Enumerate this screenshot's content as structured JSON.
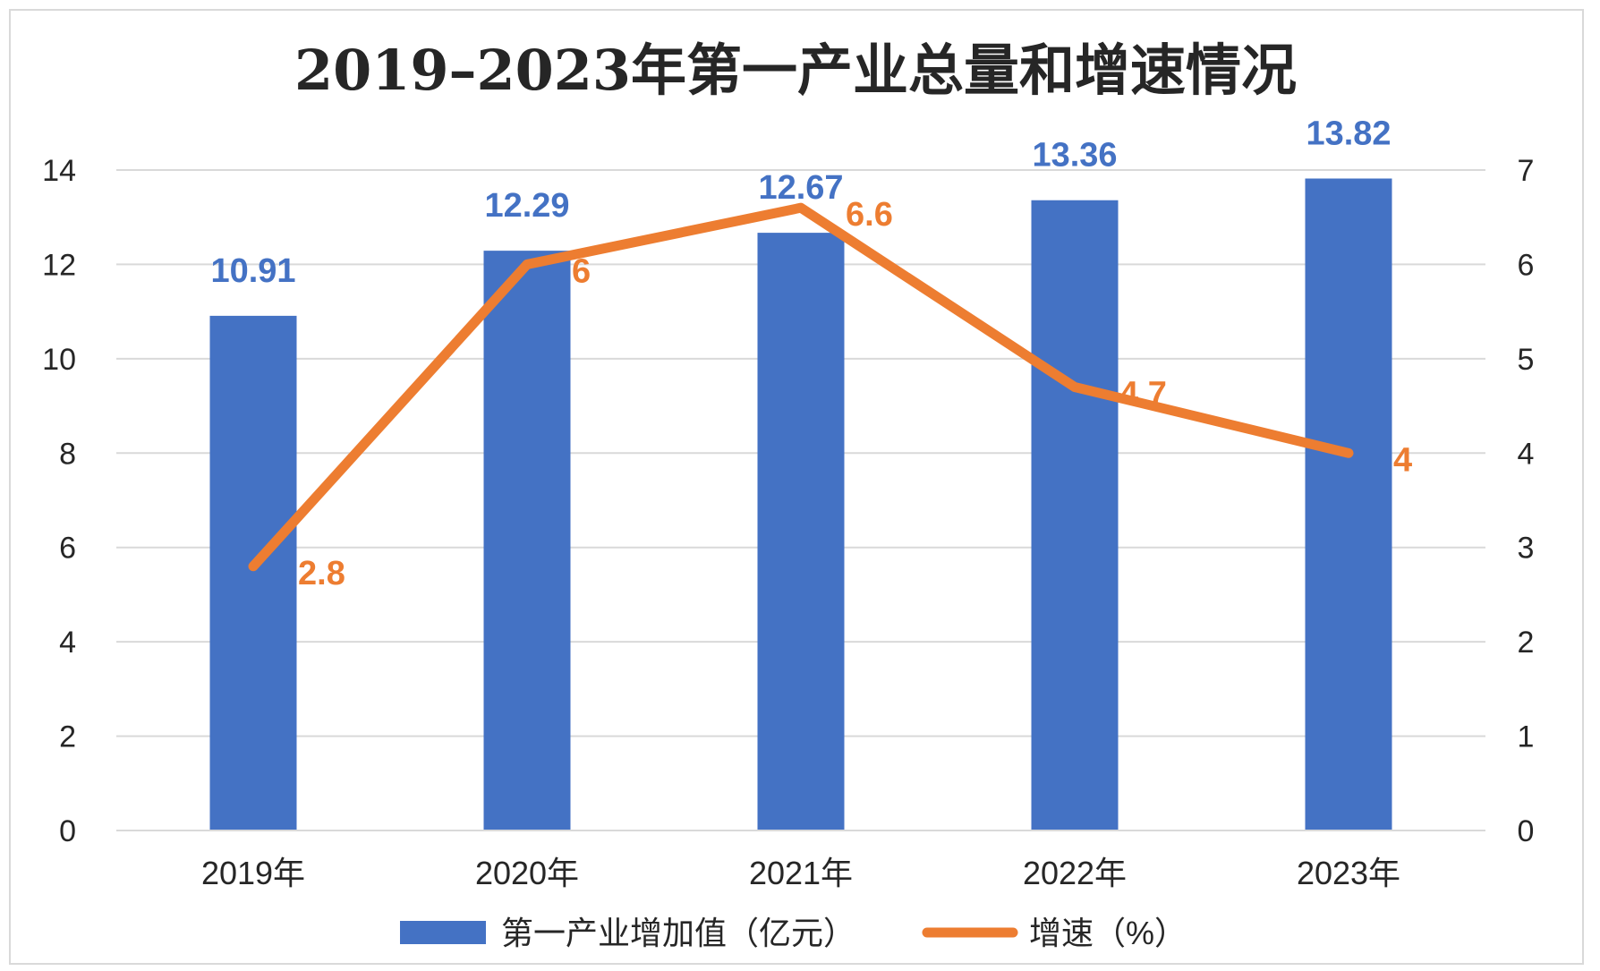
{
  "chart_data": {
    "type": "bar",
    "title": "2019–2023年第一产业总量和增速情况",
    "categories": [
      "2019年",
      "2020年",
      "2021年",
      "2022年",
      "2023年"
    ],
    "series": [
      {
        "name": "第一产业增加值（亿元）",
        "type": "bar",
        "axis": "left",
        "color": "#4472c4",
        "values": [
          10.91,
          12.29,
          12.67,
          13.36,
          13.82
        ]
      },
      {
        "name": "增速（%）",
        "type": "line",
        "axis": "right",
        "color": "#ed7d31",
        "values": [
          2.8,
          6,
          6.6,
          4.7,
          4
        ]
      }
    ],
    "y_left": {
      "range": [
        0,
        14
      ],
      "ticks": [
        "0",
        "2",
        "4",
        "6",
        "8",
        "10",
        "12",
        "14"
      ]
    },
    "y_right": {
      "range": [
        0,
        7
      ],
      "ticks": [
        "0",
        "1",
        "2",
        "3",
        "4",
        "5",
        "6",
        "7"
      ]
    },
    "grid": true,
    "legend_position": "bottom",
    "data_labels": true
  }
}
